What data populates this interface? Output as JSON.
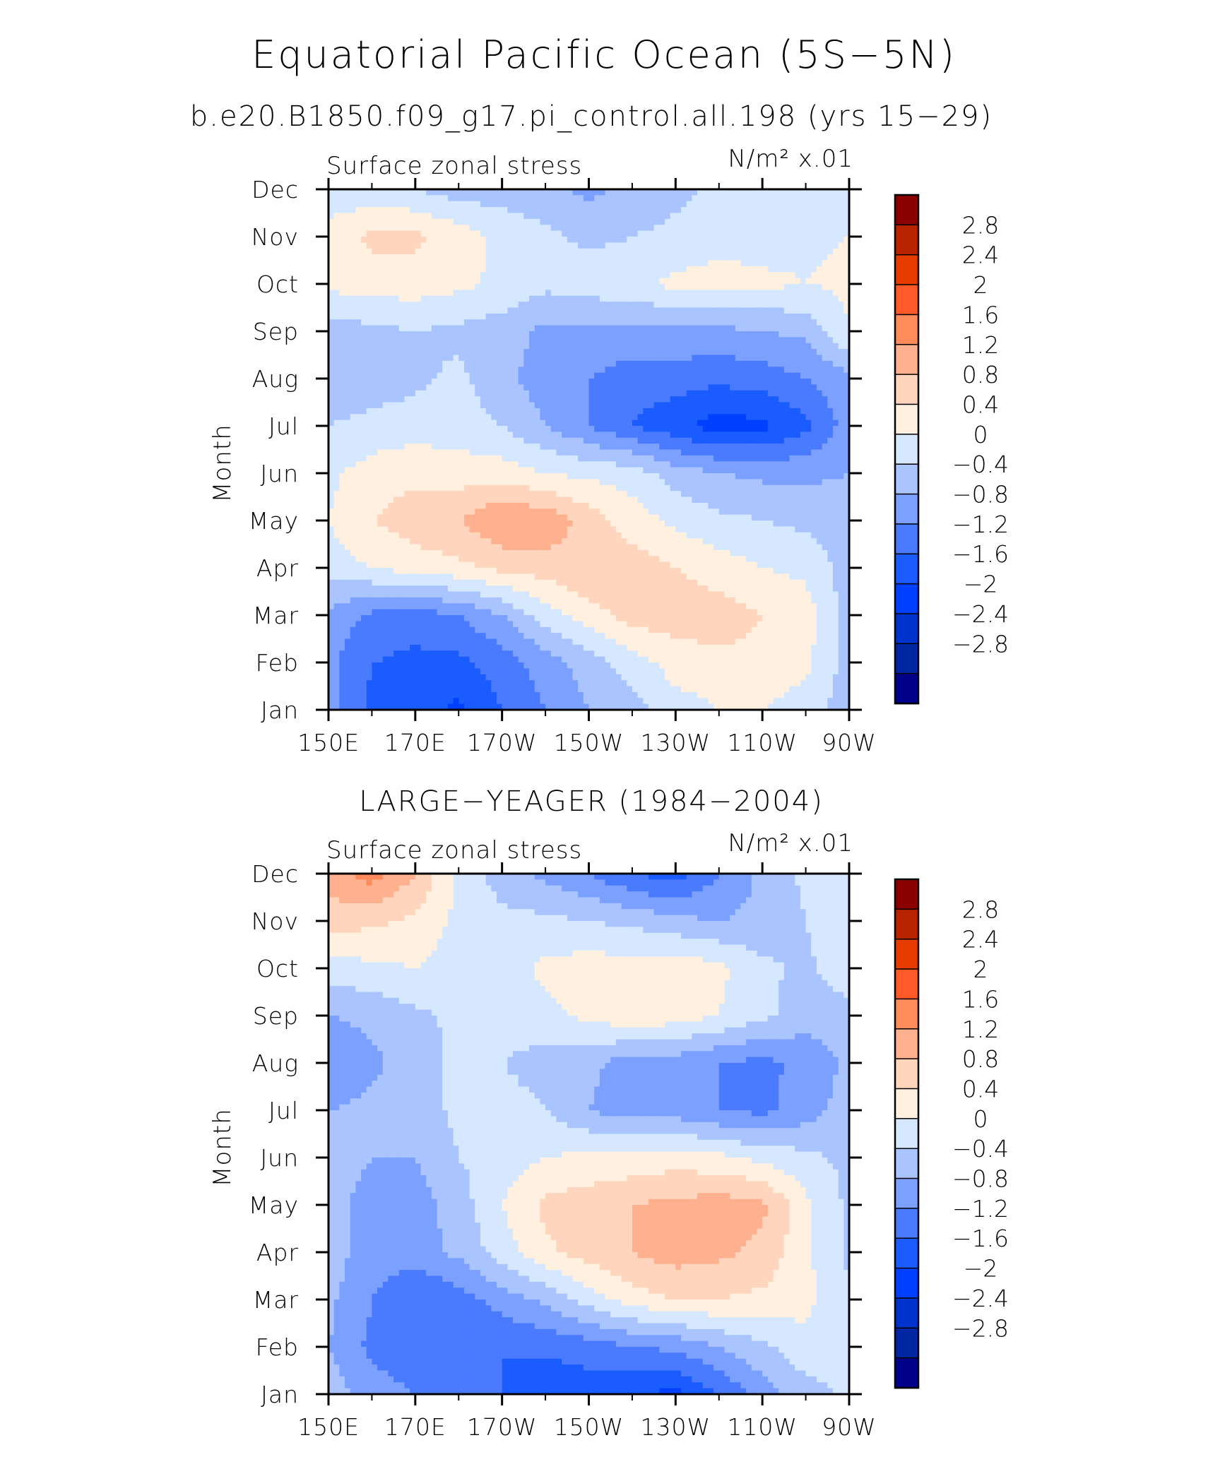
{
  "figure": {
    "title": "Equatorial Pacific Ocean (5S−5N)",
    "case": "b.e20.B1850.f09_g17.pi_control.all.198 (yrs 15−29)",
    "obs": "LARGE−YEAGER (1984−2004)"
  },
  "colorbar": {
    "colors": [
      "#00008b",
      "#0026a4",
      "#0033cc",
      "#0040ff",
      "#1a5cff",
      "#4a7bff",
      "#7ca0ff",
      "#a9c4ff",
      "#d6e8ff",
      "#fff0e0",
      "#ffd5bd",
      "#ffb08f",
      "#ff8a5c",
      "#ff5a28",
      "#e63c00",
      "#b82400",
      "#8b0000"
    ],
    "labels": [
      "2.8",
      "2.4",
      "2",
      "1.6",
      "1.2",
      "0.8",
      "0.4",
      "0",
      "−0.4",
      "−0.8",
      "−1.2",
      "−1.6",
      "−2",
      "−2.4",
      "−2.8"
    ]
  },
  "chart_data": [
    {
      "type": "heatmap",
      "title": "b.e20.B1850.f09_g17.pi_control.all.198 (yrs 15−29)",
      "left_label": "Surface zonal stress",
      "right_label": "N/m² x.01",
      "ylabel": "Month",
      "x_ticks": [
        "150E",
        "170E",
        "170W",
        "150W",
        "130W",
        "110W",
        "90W"
      ],
      "x_tick_values": [
        150,
        170,
        190,
        210,
        230,
        250,
        270
      ],
      "y_ticks": [
        "Jan",
        "Feb",
        "Mar",
        "Apr",
        "May",
        "Jun",
        "Jul",
        "Aug",
        "Sep",
        "Oct",
        "Nov",
        "Dec"
      ],
      "xlim": [
        150,
        270
      ],
      "levels": [
        -2.8,
        -2.4,
        -2,
        -1.6,
        -1.2,
        -0.8,
        -0.4,
        0,
        0.4,
        0.8,
        1.2,
        1.6,
        2,
        2.4,
        2.8
      ],
      "lon": [
        150,
        160,
        170,
        180,
        190,
        200,
        210,
        220,
        230,
        240,
        250,
        260,
        270
      ],
      "z": [
        [
          -0.6,
          -1.3,
          -1.4,
          -1.7,
          -1.2,
          -0.8,
          -0.4,
          -0.2,
          0.2,
          0.4,
          0.4,
          0.2,
          -0.2
        ],
        [
          -0.7,
          -1.2,
          -1.3,
          -1.3,
          -1.0,
          -0.6,
          -0.2,
          0.2,
          0.6,
          0.7,
          0.7,
          0.5,
          -0.2
        ],
        [
          -0.5,
          -0.9,
          -1.0,
          -0.8,
          -0.4,
          0.2,
          0.6,
          1.0,
          1.0,
          1.0,
          0.8,
          0.6,
          -0.2
        ],
        [
          0.2,
          0.4,
          0.6,
          0.7,
          0.9,
          1.0,
          1.2,
          1.0,
          0.8,
          0.6,
          0.4,
          0.3,
          -0.2
        ],
        [
          0.4,
          0.8,
          1.0,
          1.2,
          1.6,
          1.5,
          1.0,
          0.6,
          0.3,
          0.1,
          0.0,
          -0.1,
          -0.2
        ],
        [
          0.3,
          0.6,
          0.7,
          0.6,
          0.6,
          0.4,
          0.3,
          0.2,
          -0.2,
          -0.4,
          -0.5,
          -0.5,
          -0.4
        ],
        [
          0.0,
          0.1,
          0.2,
          0.2,
          0.0,
          -0.4,
          -0.8,
          -1.2,
          -1.5,
          -1.8,
          -1.7,
          -1.3,
          -0.6
        ],
        [
          -0.3,
          -0.2,
          -0.1,
          0.1,
          -0.3,
          -0.6,
          -0.8,
          -1.0,
          -1.0,
          -1.1,
          -1.0,
          -0.8,
          -0.5
        ],
        [
          -0.2,
          -0.1,
          0.0,
          -0.1,
          -0.2,
          -0.5,
          -0.5,
          -0.5,
          -0.5,
          -0.5,
          -0.4,
          -0.3,
          0.4
        ],
        [
          0.5,
          0.6,
          0.6,
          0.5,
          0.3,
          0.1,
          0.2,
          0.3,
          0.5,
          0.6,
          0.5,
          0.4,
          0.5
        ],
        [
          0.6,
          0.9,
          0.9,
          0.6,
          0.3,
          0.1,
          -0.1,
          0.0,
          0.1,
          0.2,
          0.2,
          0.3,
          0.4
        ],
        [
          0.1,
          0.1,
          0.0,
          -0.2,
          -0.2,
          -0.3,
          -0.5,
          -0.3,
          -0.1,
          0.1,
          0.1,
          0.2,
          0.3
        ]
      ]
    },
    {
      "type": "heatmap",
      "title": "LARGE−YEAGER (1984−2004)",
      "left_label": "Surface zonal stress",
      "right_label": "N/m² x.01",
      "ylabel": "Month",
      "x_ticks": [
        "150E",
        "170E",
        "170W",
        "150W",
        "130W",
        "110W",
        "90W"
      ],
      "x_tick_values": [
        150,
        170,
        190,
        210,
        230,
        250,
        270
      ],
      "y_ticks": [
        "Jan",
        "Feb",
        "Mar",
        "Apr",
        "May",
        "Jun",
        "Jul",
        "Aug",
        "Sep",
        "Oct",
        "Nov",
        "Dec"
      ],
      "xlim": [
        150,
        270
      ],
      "levels": [
        -2.8,
        -2.4,
        -2,
        -1.6,
        -1.2,
        -0.8,
        -0.4,
        0,
        0.4,
        0.8,
        1.2,
        1.6,
        2,
        2.4,
        2.8
      ],
      "lon": [
        150,
        160,
        170,
        180,
        190,
        200,
        210,
        220,
        230,
        240,
        250,
        260,
        270
      ],
      "z": [
        [
          -0.2,
          -0.6,
          -0.8,
          -1.0,
          -1.2,
          -1.6,
          -1.4,
          -1.6,
          -1.7,
          -1.2,
          -0.6,
          -0.2,
          0.1
        ],
        [
          -0.4,
          -0.9,
          -1.1,
          -1.2,
          -1.2,
          -1.1,
          -1.0,
          -0.8,
          -0.7,
          -0.4,
          -0.1,
          0.3,
          0.1
        ],
        [
          -0.3,
          -0.8,
          -1.2,
          -1.0,
          -0.6,
          -0.3,
          0.2,
          0.6,
          0.8,
          0.8,
          0.7,
          0.5,
          0.1
        ],
        [
          -0.2,
          -0.6,
          -0.6,
          -0.3,
          0.2,
          0.7,
          1.0,
          1.2,
          1.4,
          1.3,
          1.1,
          0.5,
          -0.1
        ],
        [
          -0.3,
          -0.5,
          -0.6,
          -0.2,
          0.4,
          0.9,
          1.0,
          1.2,
          1.3,
          1.4,
          1.3,
          0.5,
          -0.1
        ],
        [
          -0.3,
          -0.4,
          -0.4,
          0.0,
          0.2,
          0.4,
          0.5,
          0.5,
          0.6,
          0.5,
          0.3,
          0.1,
          -0.1
        ],
        [
          -0.4,
          -0.3,
          -0.2,
          0.1,
          0.2,
          0.0,
          -0.4,
          -0.6,
          -0.6,
          -0.8,
          -0.9,
          -0.6,
          -0.2
        ],
        [
          -0.8,
          -0.5,
          -0.2,
          0.1,
          0.0,
          -0.2,
          -0.3,
          -0.6,
          -0.6,
          -0.8,
          -0.9,
          -0.7,
          -0.3
        ],
        [
          -0.4,
          -0.3,
          -0.1,
          0.1,
          0.2,
          0.3,
          0.5,
          0.7,
          0.6,
          0.4,
          0.1,
          -0.2,
          -0.2
        ],
        [
          0.2,
          0.3,
          0.4,
          0.2,
          0.2,
          0.5,
          0.6,
          0.6,
          0.7,
          0.5,
          0.1,
          -0.1,
          0.3
        ],
        [
          1.0,
          0.9,
          0.7,
          0.3,
          0.1,
          0.1,
          0.0,
          -0.1,
          -0.3,
          -0.4,
          -0.3,
          0.0,
          0.3
        ],
        [
          1.4,
          1.8,
          1.2,
          0.3,
          -0.2,
          -0.5,
          -0.8,
          -1.2,
          -1.4,
          -0.8,
          -0.3,
          0.1,
          0.2
        ]
      ]
    }
  ]
}
